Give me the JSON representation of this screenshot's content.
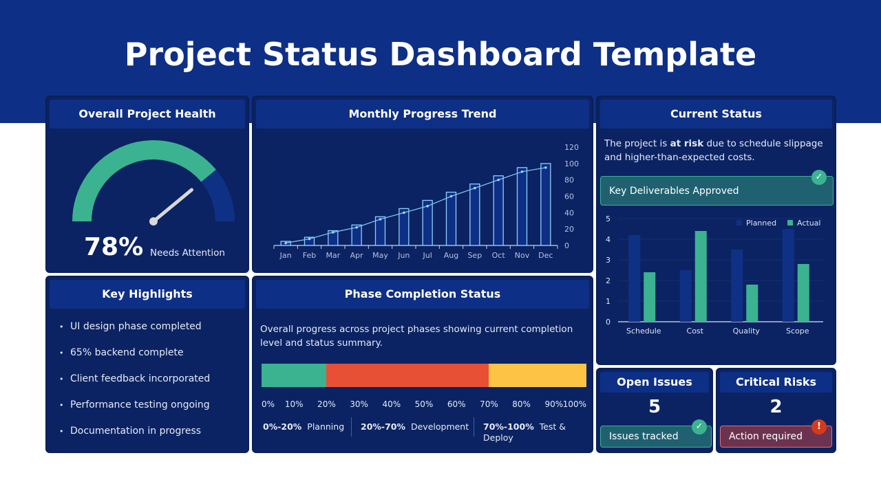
{
  "title": "Project Status Dashboard Template",
  "health": {
    "title": "Overall Project Health",
    "value_label": "78%",
    "value": 78,
    "status": "Needs Attention",
    "colors": {
      "fill": "#3bb391",
      "rest": "#0f3185",
      "needle": "#d9d9d9"
    }
  },
  "trend": {
    "title": "Monthly Progress Trend"
  },
  "status": {
    "title": "Current Status",
    "text_pre": "The project is ",
    "text_bold": "at risk",
    "text_post": " due to schedule slippage and higher-than-expected costs.",
    "deliverable": "Key Deliverables Approved"
  },
  "highlights": {
    "title": "Key Highlights",
    "items": [
      "UI design phase completed",
      "65% backend complete",
      "Client feedback incorporated",
      "Performance testing ongoing",
      "Documentation in progress"
    ]
  },
  "phase": {
    "title": "Phase Completion Status",
    "description": "Overall progress across project phases showing current completion level and status summary.",
    "segments": [
      {
        "range": "0%-20%",
        "name": "Planning",
        "from": 0,
        "to": 20,
        "color": "#3bb391"
      },
      {
        "range": "20%-70%",
        "name": "Development",
        "from": 20,
        "to": 70,
        "color": "#e85035"
      },
      {
        "range": "70%-100%",
        "name": "Test & Deploy",
        "from": 70,
        "to": 100,
        "color": "#fdc345"
      }
    ],
    "ticks": [
      "0%",
      "10%",
      "20%",
      "30%",
      "40%",
      "50%",
      "60%",
      "70%",
      "80%",
      "90%",
      "100%"
    ]
  },
  "issues": {
    "title": "Open Issues",
    "count": "5",
    "note": "Issues tracked"
  },
  "risks": {
    "title": "Critical Risks",
    "count": "2",
    "note": "Action required"
  },
  "chart_data": [
    {
      "type": "bar",
      "title": "Monthly Progress Trend",
      "categories": [
        "Jan",
        "Feb",
        "Mar",
        "Apr",
        "May",
        "Jun",
        "Jul",
        "Aug",
        "Sep",
        "Oct",
        "Nov",
        "Dec"
      ],
      "series": [
        {
          "type": "bar",
          "values": [
            5,
            10,
            18,
            25,
            35,
            45,
            55,
            65,
            75,
            85,
            95,
            100
          ]
        },
        {
          "type": "line",
          "values": [
            3,
            8,
            16,
            22,
            32,
            40,
            48,
            60,
            70,
            80,
            90,
            95
          ]
        }
      ],
      "ylim": [
        0,
        120
      ],
      "yticks": [
        0,
        20,
        40,
        60,
        80,
        100,
        120
      ],
      "y_axis_side": "right",
      "grid": false
    },
    {
      "type": "bar",
      "categories": [
        "Schedule",
        "Cost",
        "Quality",
        "Scope"
      ],
      "series": [
        {
          "name": "Planned",
          "values": [
            4.2,
            2.5,
            3.5,
            4.5
          ],
          "color": "#0f3185"
        },
        {
          "name": "Actual",
          "values": [
            2.4,
            4.4,
            1.8,
            2.8
          ],
          "color": "#3bb391"
        }
      ],
      "ylim": [
        0,
        5
      ],
      "yticks": [
        0,
        1,
        2,
        3,
        4,
        5
      ],
      "legend": "top-right",
      "grid": true
    }
  ]
}
